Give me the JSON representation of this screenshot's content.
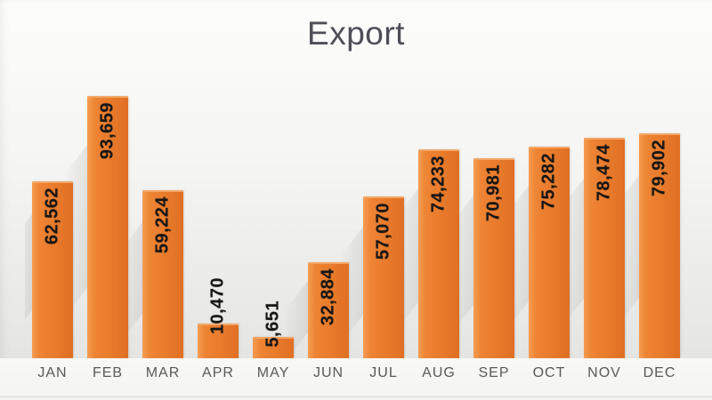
{
  "title": "Export",
  "chart_data": {
    "type": "bar",
    "title": "Export",
    "categories": [
      "JAN",
      "FEB",
      "MAR",
      "APR",
      "MAY",
      "JUN",
      "JUL",
      "AUG",
      "SEP",
      "OCT",
      "NOV",
      "DEC"
    ],
    "values": [
      62562,
      93659,
      59224,
      10470,
      5651,
      32884,
      57070,
      74233,
      70981,
      75282,
      78474,
      79902
    ],
    "value_labels": [
      "62,562",
      "93,659",
      "59,224",
      "10,470",
      "5,651",
      "32,884",
      "57,070",
      "74,233",
      "70,981",
      "75,282",
      "78,474",
      "79,902"
    ],
    "xlabel": "",
    "ylabel": "",
    "ylim": [
      0,
      100000
    ],
    "grid": false,
    "legend": false,
    "value_label_rotation": "vertical-bottom-to-top",
    "bar_color": "#E97B2B"
  },
  "colors": {
    "bar_main": "#E97B2B",
    "bar_light": "#F49D52",
    "bar_dark": "#E06F24",
    "bar_cap": "#F4A666",
    "title_text": "#4E4E56",
    "axis_text": "#595959",
    "value_text": "#161616",
    "bg_top": "#FDFDFC",
    "bg_bottom": "#E1E1DF"
  }
}
